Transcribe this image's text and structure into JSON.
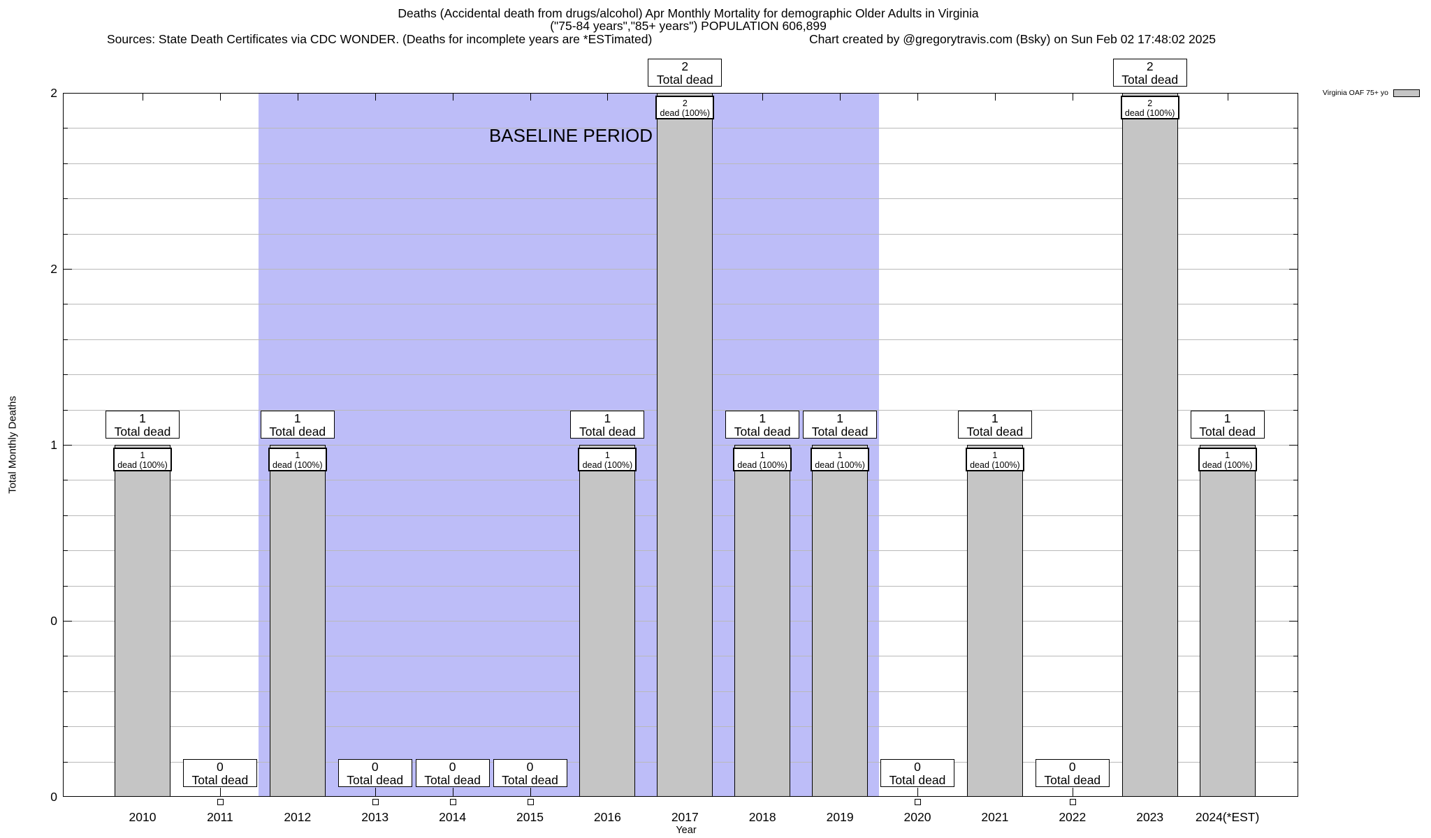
{
  "header": {
    "title_line1": "Deaths (Accidental death from drugs/alcohol) Apr Monthly Mortality for demographic Older Adults in Virginia",
    "title_line2": "(\"75-84 years\",\"85+ years\") POPULATION 606,899",
    "sources": "Sources: State Death Certificates via CDC WONDER. (Deaths for incomplete years are *ESTimated)",
    "credit": "Chart created by @gregorytravis.com (Bsky) on Sun Feb 02 17:48:02 2025"
  },
  "chart_data": {
    "type": "bar",
    "title": "Deaths (Accidental death from drugs/alcohol) Apr Monthly Mortality for demographic Older Adults in Virginia (\"75-84 years\",\"85+ years\") POPULATION 606,899",
    "xlabel": "Year",
    "ylabel": "Total Monthly Deaths",
    "categories": [
      "2010",
      "2011",
      "2012",
      "2013",
      "2014",
      "2015",
      "2016",
      "2017",
      "2018",
      "2019",
      "2020",
      "2021",
      "2022",
      "2023",
      "2024(*EST)"
    ],
    "values": [
      1,
      0,
      1,
      0,
      0,
      0,
      1,
      2,
      1,
      1,
      0,
      1,
      0,
      2,
      1
    ],
    "bar_top_box_label": "Total dead",
    "bar_inner_box_label": "dead (100%)",
    "ylim": [
      0,
      2
    ],
    "ytick_values": [
      0,
      0.5,
      1,
      1.5,
      2
    ],
    "ytick_labels": [
      "0",
      "0",
      "1",
      "2",
      "2"
    ],
    "minor_grid_step": 0.1,
    "grid": "on",
    "legend": {
      "label": "Virginia OAF 75+ yo",
      "position": "top-right-outside",
      "swatch_color": "#c5c5c5"
    },
    "annotation": {
      "text": "BASELINE PERIOD",
      "x_from_category": "2012",
      "x_to_category": "2019",
      "region_color": "#bdbdf8"
    },
    "zero_value_marker": "small-hollow-square-below-axis",
    "colors": {
      "bar_fill": "#c5c5c5",
      "bar_border": "#000000",
      "gridline": "#b9b9b9",
      "baseline_region": "#bdbdf8",
      "background": "#ffffff",
      "text": "#000000"
    }
  }
}
